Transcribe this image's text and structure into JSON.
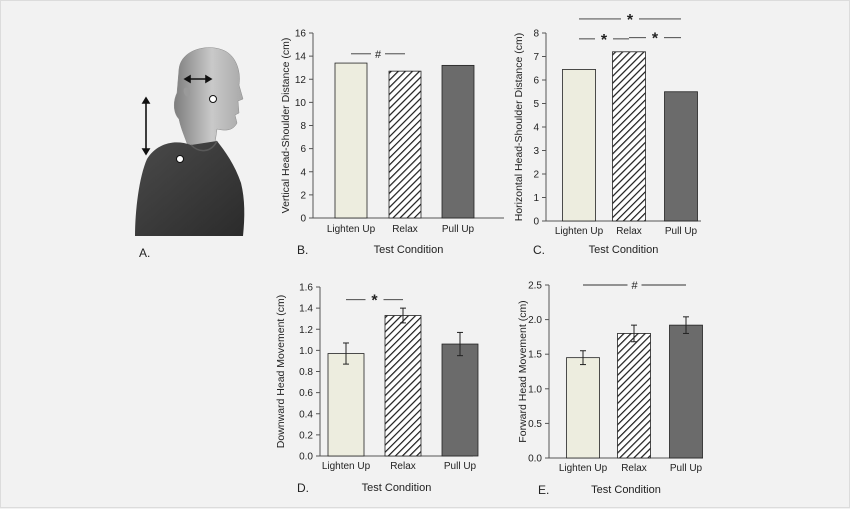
{
  "figure": {
    "panel_letters": [
      "A.",
      "B.",
      "C.",
      "D.",
      "E."
    ],
    "colors": {
      "lighten_up": "#ededdf",
      "relax_hatch": "#1a1a1a",
      "pull_up": "#6b6b6b",
      "axis": "#555555",
      "background": "#f2f2f2"
    }
  },
  "chart_data": [
    {
      "id": "B",
      "type": "bar",
      "title": "",
      "xlabel": "Test Condition",
      "ylabel": "Vertical Head-Shoulder Distance (cm)",
      "categories": [
        "Lighten Up",
        "Relax",
        "Pull Up"
      ],
      "values": [
        13.4,
        12.7,
        13.2
      ],
      "errors": null,
      "ylim": [
        0,
        16
      ],
      "yticks": [
        0,
        2,
        4,
        6,
        8,
        10,
        12,
        14,
        16
      ],
      "tick_labels": [
        "0",
        "2",
        "4",
        "6",
        "8",
        "10",
        "12",
        "14",
        "16"
      ],
      "annotations": [
        {
          "from": 0,
          "to": 1,
          "y": 14.2,
          "symbol": "#"
        }
      ]
    },
    {
      "id": "C",
      "type": "bar",
      "title": "",
      "xlabel": "Test Condition",
      "ylabel": "Horizontal Head-Shoulder Distance (cm)",
      "categories": [
        "Lighten Up",
        "Relax",
        "Pull Up"
      ],
      "values": [
        6.45,
        7.2,
        5.5
      ],
      "errors": null,
      "ylim": [
        0,
        8
      ],
      "yticks": [
        0,
        1,
        2,
        3,
        4,
        5,
        6,
        7,
        8
      ],
      "tick_labels": [
        "0",
        "1",
        "2",
        "3",
        "4",
        "5",
        "6",
        "7",
        "8"
      ],
      "annotations": [
        {
          "from": 0,
          "to": 2,
          "y": 8.6,
          "symbol": "*"
        },
        {
          "from": 0,
          "to": 1,
          "y": 7.75,
          "symbol": "*"
        },
        {
          "from": 1,
          "to": 2,
          "y": 7.8,
          "symbol": "*"
        }
      ]
    },
    {
      "id": "D",
      "type": "bar",
      "title": "",
      "xlabel": "Test Condition",
      "ylabel": "Downward Head Movement (cm)",
      "categories": [
        "Lighten Up",
        "Relax",
        "Pull Up"
      ],
      "values": [
        0.97,
        1.33,
        1.06
      ],
      "errors": [
        0.1,
        0.07,
        0.11
      ],
      "ylim": [
        0,
        1.6
      ],
      "yticks": [
        0,
        0.2,
        0.4,
        0.6,
        0.8,
        1.0,
        1.2,
        1.4,
        1.6
      ],
      "tick_labels": [
        "0.0",
        "0.2",
        "0.4",
        "0.6",
        "0.8",
        "1.0",
        "1.2",
        "1.4",
        "1.6"
      ],
      "annotations": [
        {
          "from": 0,
          "to": 1,
          "y": 1.48,
          "symbol": "*"
        }
      ]
    },
    {
      "id": "E",
      "type": "bar",
      "title": "",
      "xlabel": "Test Condition",
      "ylabel": "Forward Head Movement (cm)",
      "categories": [
        "Lighten Up",
        "Relax",
        "Pull Up"
      ],
      "values": [
        1.45,
        1.8,
        1.92
      ],
      "errors": [
        0.1,
        0.12,
        0.12
      ],
      "ylim": [
        0,
        2.5
      ],
      "yticks": [
        0,
        0.5,
        1.0,
        1.5,
        2.0,
        2.5
      ],
      "tick_labels": [
        "0.0",
        "0.5",
        "1.0",
        "1.5",
        "2.0",
        "2.5"
      ],
      "annotations": [
        {
          "from": 0,
          "to": 2,
          "y": 2.5,
          "symbol": "#"
        }
      ]
    }
  ]
}
